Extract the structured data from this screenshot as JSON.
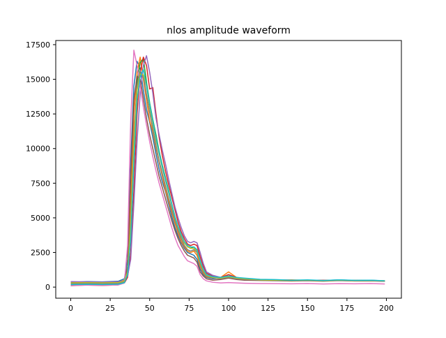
{
  "chart_data": {
    "type": "line",
    "title": "nlos amplitude waveform",
    "xlabel": "",
    "ylabel": "",
    "xlim": [
      -9.5,
      209.5
    ],
    "ylim": [
      -800,
      17800
    ],
    "x_ticks": [
      0,
      25,
      50,
      75,
      100,
      125,
      150,
      175,
      200
    ],
    "y_ticks": [
      0,
      2500,
      5000,
      7500,
      10000,
      12500,
      15000,
      17500
    ],
    "x_tick_labels": [
      "0",
      "25",
      "50",
      "75",
      "100",
      "125",
      "150",
      "175",
      "200"
    ],
    "y_tick_labels": [
      "0",
      "2500",
      "5000",
      "7500",
      "10000",
      "12500",
      "15000",
      "17500"
    ],
    "grid": false,
    "legend": "none",
    "x": [
      0,
      10,
      20,
      30,
      34,
      36,
      38,
      40,
      42,
      44,
      46,
      48,
      50,
      52,
      54,
      56,
      58,
      60,
      62,
      64,
      66,
      68,
      70,
      72,
      74,
      76,
      78,
      80,
      82,
      84,
      86,
      90,
      95,
      100,
      105,
      110,
      120,
      130,
      140,
      150,
      160,
      170,
      180,
      190,
      199
    ],
    "series": [
      {
        "color": "#1f77b4",
        "values": [
          350,
          400,
          380,
          420,
          600,
          2000,
          9000,
          14500,
          16300,
          15800,
          14200,
          12800,
          11900,
          10800,
          9600,
          8500,
          7600,
          6900,
          6000,
          5100,
          4300,
          3700,
          3200,
          2800,
          2500,
          2400,
          2300,
          2000,
          1300,
          900,
          700,
          600,
          650,
          800,
          600,
          550,
          500,
          520,
          480,
          500,
          470,
          520,
          480,
          500,
          450
        ]
      },
      {
        "color": "#ff7f0e",
        "values": [
          300,
          350,
          330,
          360,
          500,
          1200,
          6000,
          12500,
          15500,
          16600,
          15000,
          13500,
          12000,
          11200,
          10000,
          9000,
          8000,
          7000,
          6200,
          5400,
          4600,
          3900,
          3300,
          2900,
          2600,
          2500,
          2600,
          2300,
          1500,
          1000,
          750,
          650,
          700,
          1100,
          700,
          600,
          550,
          500,
          520,
          480,
          500,
          470,
          500,
          480,
          460
        ]
      },
      {
        "color": "#2ca02c",
        "values": [
          200,
          250,
          230,
          260,
          400,
          900,
          4000,
          10000,
          14800,
          16200,
          16500,
          14800,
          13300,
          12100,
          11000,
          9800,
          8800,
          7900,
          7000,
          6000,
          5100,
          4300,
          3700,
          3200,
          2900,
          2800,
          2900,
          2700,
          1900,
          1200,
          850,
          700,
          650,
          750,
          650,
          600,
          520,
          500,
          480,
          500,
          460,
          500,
          470,
          480,
          450
        ]
      },
      {
        "color": "#d62728",
        "values": [
          100,
          150,
          120,
          160,
          300,
          700,
          2500,
          7000,
          12500,
          15500,
          16600,
          16000,
          14300,
          14400,
          12500,
          10800,
          9500,
          8400,
          7400,
          6500,
          5600,
          4700,
          4000,
          3500,
          3100,
          3000,
          3100,
          3000,
          2200,
          1500,
          1000,
          800,
          700,
          900,
          700,
          600,
          550,
          520,
          500,
          480,
          500,
          470,
          480,
          470,
          430
        ]
      },
      {
        "color": "#9467bd",
        "values": [
          400,
          380,
          360,
          390,
          450,
          800,
          2000,
          6000,
          10500,
          14000,
          16000,
          16700,
          15500,
          14000,
          12200,
          11000,
          9900,
          8900,
          7800,
          6800,
          5800,
          5000,
          4300,
          3700,
          3300,
          3200,
          3300,
          3200,
          2500,
          1700,
          1100,
          850,
          700,
          800,
          650,
          600,
          520,
          500,
          470,
          490,
          460,
          480,
          460,
          470,
          440
        ]
      },
      {
        "color": "#8c564b",
        "values": [
          150,
          180,
          160,
          200,
          350,
          1500,
          8000,
          13500,
          15200,
          15000,
          13600,
          12200,
          11000,
          10000,
          9000,
          8000,
          7200,
          6400,
          5600,
          4800,
          4100,
          3500,
          3000,
          2600,
          2300,
          2200,
          2100,
          1800,
          1100,
          800,
          600,
          500,
          550,
          650,
          550,
          500,
          480,
          460,
          440,
          460,
          430,
          470,
          440,
          450,
          420
        ]
      },
      {
        "color": "#e377c2",
        "values": [
          120,
          140,
          130,
          150,
          300,
          3000,
          12000,
          17100,
          16000,
          14500,
          13000,
          11700,
          10500,
          9400,
          8400,
          7500,
          6700,
          5900,
          5100,
          4300,
          3600,
          3000,
          2600,
          2200,
          1900,
          1800,
          1700,
          1500,
          900,
          600,
          450,
          350,
          300,
          330,
          300,
          280,
          260,
          250,
          240,
          260,
          230,
          250,
          240,
          260,
          230
        ]
      },
      {
        "color": "#7f7f7f",
        "values": [
          250,
          260,
          240,
          270,
          380,
          1000,
          5000,
          11000,
          14500,
          15600,
          15200,
          13900,
          12600,
          11400,
          10200,
          9100,
          8200,
          7300,
          6400,
          5600,
          4800,
          4100,
          3500,
          3000,
          2700,
          2600,
          2700,
          2500,
          1700,
          1100,
          800,
          650,
          600,
          700,
          600,
          550,
          500,
          480,
          460,
          480,
          450,
          470,
          450,
          460,
          430
        ]
      },
      {
        "color": "#bcbd22",
        "values": [
          300,
          320,
          310,
          330,
          420,
          1100,
          4500,
          10500,
          14200,
          15400,
          15300,
          14500,
          13000,
          11800,
          10600,
          9600,
          8600,
          7700,
          6800,
          5900,
          5000,
          4300,
          3700,
          3200,
          2900,
          2800,
          2800,
          2600,
          1800,
          1200,
          850,
          700,
          650,
          750,
          650,
          600,
          520,
          500,
          480,
          500,
          460,
          500,
          470,
          480,
          450
        ]
      },
      {
        "color": "#17becf",
        "values": [
          180,
          200,
          190,
          210,
          320,
          900,
          3500,
          9000,
          13500,
          15200,
          15700,
          14600,
          13200,
          12000,
          10800,
          9700,
          8700,
          7800,
          6900,
          6000,
          5100,
          4400,
          3800,
          3300,
          3000,
          2900,
          2900,
          2700,
          1900,
          1300,
          900,
          750,
          700,
          800,
          700,
          650,
          560,
          540,
          500,
          520,
          480,
          520,
          490,
          500,
          460
        ]
      }
    ]
  }
}
